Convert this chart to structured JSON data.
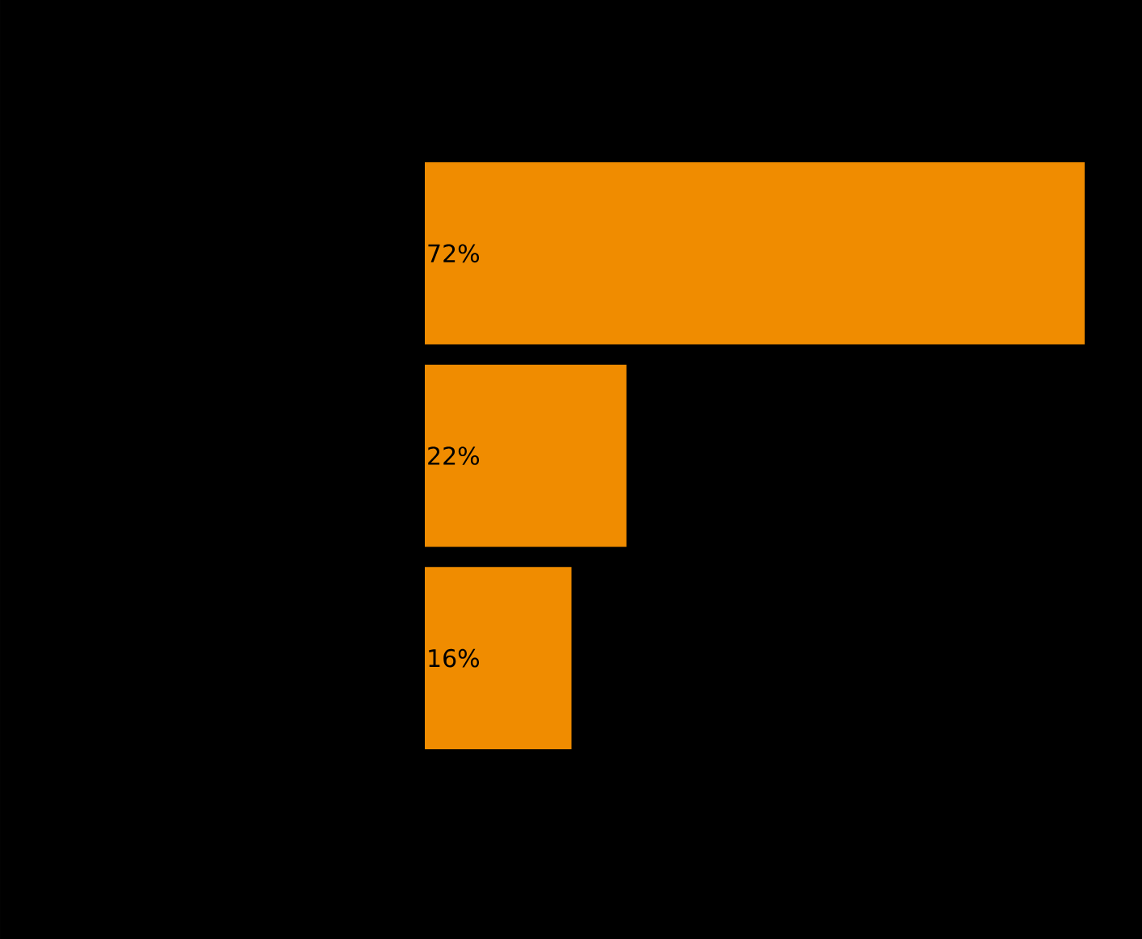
{
  "chart_data": {
    "type": "bar",
    "orientation": "horizontal",
    "categories": [
      null,
      null,
      null
    ],
    "values": [
      72,
      22,
      16
    ],
    "value_labels": [
      "72%",
      "22%",
      "16%"
    ],
    "color": "#f08c00"
  }
}
